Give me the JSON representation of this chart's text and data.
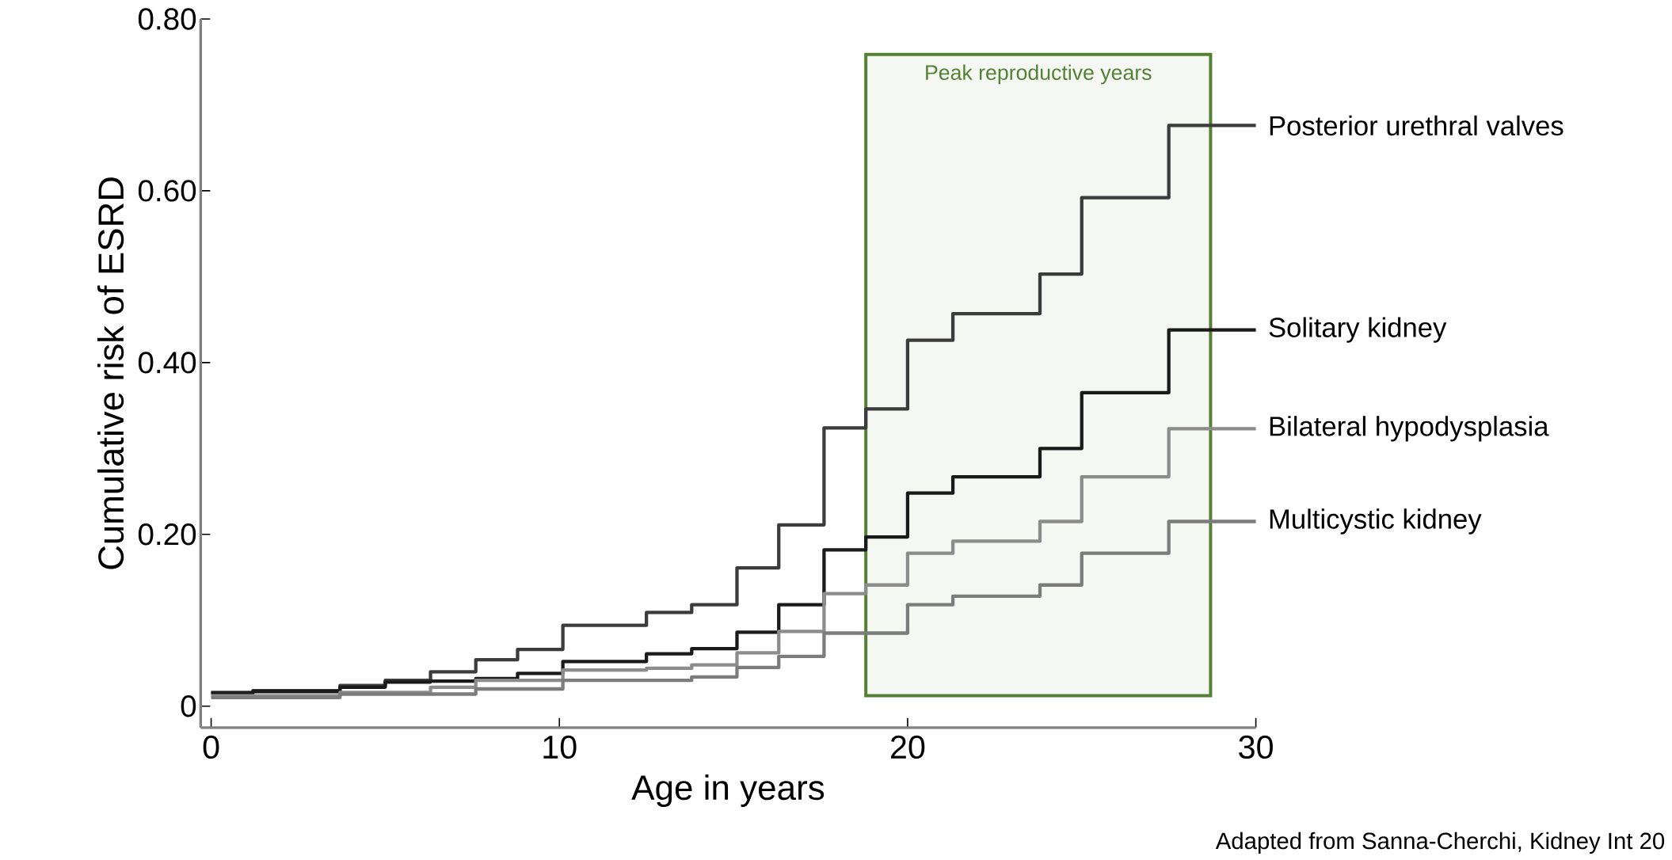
{
  "chart_data": {
    "type": "step",
    "xlabel": "Age in years",
    "ylabel": "Cumulative risk of ESRD",
    "xlim": [
      -0.3,
      30
    ],
    "ylim": [
      -0.025,
      0.8
    ],
    "xticks": [
      0,
      10,
      20,
      30
    ],
    "yticks": [
      0,
      {
        "value": 0.2,
        "label": "0.20"
      },
      {
        "value": 0.4,
        "label": "0.40"
      },
      {
        "value": 0.6,
        "label": "0.60"
      },
      {
        "value": 0.8,
        "label": "0.80"
      }
    ],
    "legend": false,
    "marker": "none",
    "line_style": "solid",
    "series": [
      {
        "name": "Posterior urethral valves",
        "color": "#3c3c3c",
        "x": [
          0,
          1.2,
          3.7,
          5.0,
          6.3,
          7.6,
          8.8,
          10.1,
          12.5,
          13.8,
          15.1,
          16.3,
          17.6,
          18.8,
          20.0,
          21.3,
          23.8,
          25.0,
          27.5,
          30
        ],
        "values": [
          0.016,
          0.018,
          0.024,
          0.03,
          0.04,
          0.054,
          0.066,
          0.094,
          0.109,
          0.118,
          0.161,
          0.211,
          0.324,
          0.346,
          0.426,
          0.457,
          0.503,
          0.592,
          0.676,
          0.676
        ]
      },
      {
        "name": "Solitary kidney",
        "color": "#1a1a1a",
        "x": [
          0,
          1.2,
          3.7,
          5.0,
          6.3,
          7.6,
          8.8,
          10.1,
          12.5,
          13.8,
          15.1,
          16.3,
          17.6,
          18.8,
          20.0,
          21.3,
          23.8,
          25.0,
          27.5,
          30
        ],
        "values": [
          0.015,
          0.017,
          0.022,
          0.028,
          0.029,
          0.032,
          0.038,
          0.052,
          0.061,
          0.067,
          0.086,
          0.118,
          0.182,
          0.197,
          0.248,
          0.267,
          0.3,
          0.365,
          0.438,
          0.438
        ]
      },
      {
        "name": "Bilateral hypodysplasia",
        "color": "#8c8c8c",
        "x": [
          0,
          3.7,
          6.3,
          7.6,
          10.1,
          12.5,
          13.8,
          15.1,
          16.3,
          17.6,
          18.8,
          20.0,
          21.3,
          23.8,
          25.0,
          27.5,
          30
        ],
        "values": [
          0.012,
          0.016,
          0.022,
          0.03,
          0.042,
          0.044,
          0.048,
          0.062,
          0.087,
          0.131,
          0.141,
          0.178,
          0.192,
          0.215,
          0.267,
          0.323,
          0.323
        ]
      },
      {
        "name": "Multicystic kidney",
        "color": "#7c7c7c",
        "x": [
          0,
          3.7,
          7.6,
          10.1,
          13.8,
          15.1,
          16.3,
          17.6,
          20.0,
          21.3,
          23.8,
          25.0,
          27.5,
          30
        ],
        "values": [
          0.01,
          0.014,
          0.02,
          0.03,
          0.034,
          0.045,
          0.058,
          0.085,
          0.118,
          0.128,
          0.141,
          0.178,
          0.215,
          0.215
        ]
      }
    ],
    "bands": [
      {
        "axis": "x",
        "from": 18.8,
        "to": 28.7,
        "label": "Peak reproductive years",
        "color": "#538135"
      }
    ],
    "annotations": [
      "Adapted from Sanna-Cherchi, Kidney Int 20"
    ]
  }
}
